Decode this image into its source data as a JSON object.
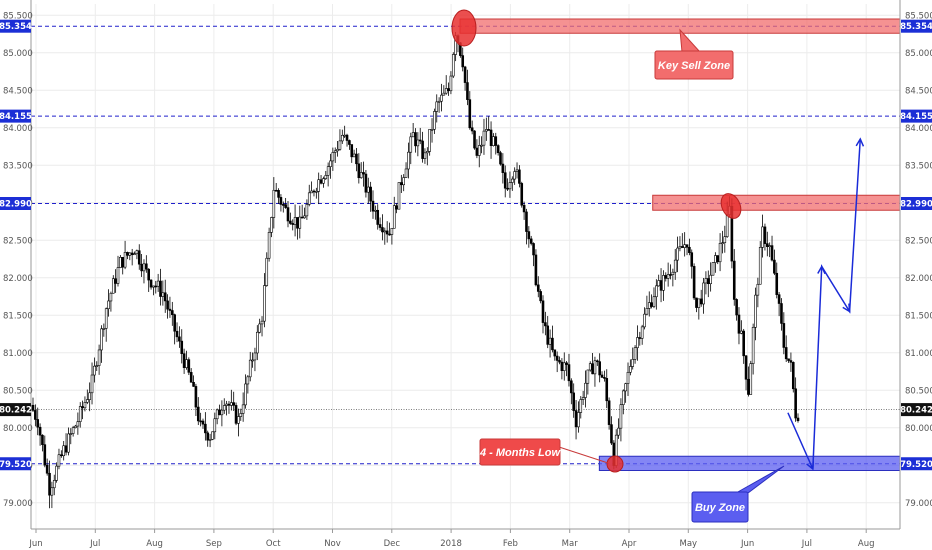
{
  "chart_data": {
    "type": "candlestick",
    "title": "",
    "x_ticks": [
      "Jun",
      "Jul",
      "Aug",
      "Sep",
      "Oct",
      "Nov",
      "Dec",
      "2018",
      "Feb",
      "Mar",
      "Apr",
      "May",
      "Jun",
      "Jul",
      "Aug"
    ],
    "y_ticks": [
      "79.000",
      "79.500",
      "80.000",
      "80.500",
      "81.000",
      "81.500",
      "82.000",
      "82.500",
      "83.000",
      "83.500",
      "84.000",
      "84.500",
      "85.000",
      "85.500"
    ],
    "ylim": [
      78.65,
      85.65
    ],
    "grid": true,
    "anchors": [
      {
        "t": 0,
        "v": 80.3
      },
      {
        "t": 3,
        "v": 80.1
      },
      {
        "t": 8,
        "v": 79.2
      },
      {
        "t": 14,
        "v": 79.7
      },
      {
        "t": 20,
        "v": 80.1
      },
      {
        "t": 26,
        "v": 80.6
      },
      {
        "t": 32,
        "v": 81.6
      },
      {
        "t": 38,
        "v": 82.2
      },
      {
        "t": 44,
        "v": 82.4
      },
      {
        "t": 50,
        "v": 82.0
      },
      {
        "t": 56,
        "v": 81.8
      },
      {
        "t": 62,
        "v": 81.2
      },
      {
        "t": 68,
        "v": 80.6
      },
      {
        "t": 72,
        "v": 80.0
      },
      {
        "t": 76,
        "v": 79.9
      },
      {
        "t": 82,
        "v": 80.4
      },
      {
        "t": 88,
        "v": 80.1
      },
      {
        "t": 93,
        "v": 80.8
      },
      {
        "t": 98,
        "v": 81.5
      },
      {
        "t": 103,
        "v": 83.2
      },
      {
        "t": 108,
        "v": 82.9
      },
      {
        "t": 114,
        "v": 82.7
      },
      {
        "t": 120,
        "v": 83.2
      },
      {
        "t": 126,
        "v": 83.5
      },
      {
        "t": 132,
        "v": 83.9
      },
      {
        "t": 137,
        "v": 83.6
      },
      {
        "t": 142,
        "v": 83.2
      },
      {
        "t": 147,
        "v": 82.8
      },
      {
        "t": 152,
        "v": 82.6
      },
      {
        "t": 157,
        "v": 83.3
      },
      {
        "t": 162,
        "v": 83.9
      },
      {
        "t": 167,
        "v": 83.6
      },
      {
        "t": 172,
        "v": 84.3
      },
      {
        "t": 177,
        "v": 84.5
      },
      {
        "t": 180,
        "v": 85.3
      },
      {
        "t": 183,
        "v": 84.9
      },
      {
        "t": 186,
        "v": 84.0
      },
      {
        "t": 189,
        "v": 83.6
      },
      {
        "t": 193,
        "v": 84.0
      },
      {
        "t": 197,
        "v": 83.7
      },
      {
        "t": 201,
        "v": 83.2
      },
      {
        "t": 205,
        "v": 83.5
      },
      {
        "t": 209,
        "v": 82.9
      },
      {
        "t": 213,
        "v": 82.2
      },
      {
        "t": 217,
        "v": 81.4
      },
      {
        "t": 222,
        "v": 80.9
      },
      {
        "t": 227,
        "v": 80.8
      },
      {
        "t": 231,
        "v": 80.1
      },
      {
        "t": 235,
        "v": 80.6
      },
      {
        "t": 239,
        "v": 80.9
      },
      {
        "t": 243,
        "v": 80.6
      },
      {
        "t": 247,
        "v": 79.6
      },
      {
        "t": 251,
        "v": 80.4
      },
      {
        "t": 255,
        "v": 81.0
      },
      {
        "t": 259,
        "v": 81.4
      },
      {
        "t": 264,
        "v": 81.8
      },
      {
        "t": 269,
        "v": 82.0
      },
      {
        "t": 274,
        "v": 82.3
      },
      {
        "t": 278,
        "v": 82.5
      },
      {
        "t": 282,
        "v": 81.6
      },
      {
        "t": 286,
        "v": 81.9
      },
      {
        "t": 290,
        "v": 82.2
      },
      {
        "t": 294,
        "v": 82.6
      },
      {
        "t": 296,
        "v": 82.9
      },
      {
        "t": 298,
        "v": 81.7
      },
      {
        "t": 301,
        "v": 81.2
      },
      {
        "t": 304,
        "v": 80.5
      },
      {
        "t": 307,
        "v": 81.7
      },
      {
        "t": 310,
        "v": 82.6
      },
      {
        "t": 313,
        "v": 82.4
      },
      {
        "t": 316,
        "v": 81.8
      },
      {
        "t": 319,
        "v": 81.1
      },
      {
        "t": 322,
        "v": 80.8
      },
      {
        "t": 324,
        "v": 80.2
      }
    ],
    "candle_count": 325,
    "horizontal_levels": [
      {
        "value": 85.354,
        "label": "85.354"
      },
      {
        "value": 84.155,
        "label": "84.155"
      },
      {
        "value": 82.99,
        "label": "82.990"
      },
      {
        "value": 79.52,
        "label": "79.520"
      }
    ],
    "last_price": {
      "value": 80.242,
      "label": "80.242"
    },
    "zones": [
      {
        "name": "Key Sell Zone",
        "from_tick": 7.15,
        "to_tick": 15,
        "low": 85.26,
        "high": 85.45
      },
      {
        "name": "sell-zone-2",
        "from_tick": 10.4,
        "to_tick": 15,
        "low": 82.9,
        "high": 83.1
      },
      {
        "name": "Buy Zone",
        "from_tick": 9.5,
        "to_tick": 15,
        "low": 79.43,
        "high": 79.62
      }
    ],
    "annotations": [
      {
        "label": "Key Sell Zone",
        "tick": 11.0,
        "value": 84.82
      },
      {
        "label": "4 - Months Low",
        "tick": 8.0,
        "value": 79.72
      },
      {
        "label": "Buy Zone",
        "tick": 11.45,
        "value": 79.05
      }
    ],
    "projection_path": [
      {
        "tick": 12.68,
        "value": 80.2
      },
      {
        "tick": 13.1,
        "value": 79.45
      },
      {
        "tick": 13.25,
        "value": 82.15
      },
      {
        "tick": 13.72,
        "value": 81.55
      },
      {
        "tick": 13.9,
        "value": 83.85
      }
    ],
    "colors": {
      "up": "#000000",
      "down": "#000000",
      "level": "#2020cc",
      "sell_zone": "#f26d6d",
      "buy_zone": "#5b5ef0",
      "marker": "#e83030",
      "arrow": "#1a2bd8"
    }
  }
}
